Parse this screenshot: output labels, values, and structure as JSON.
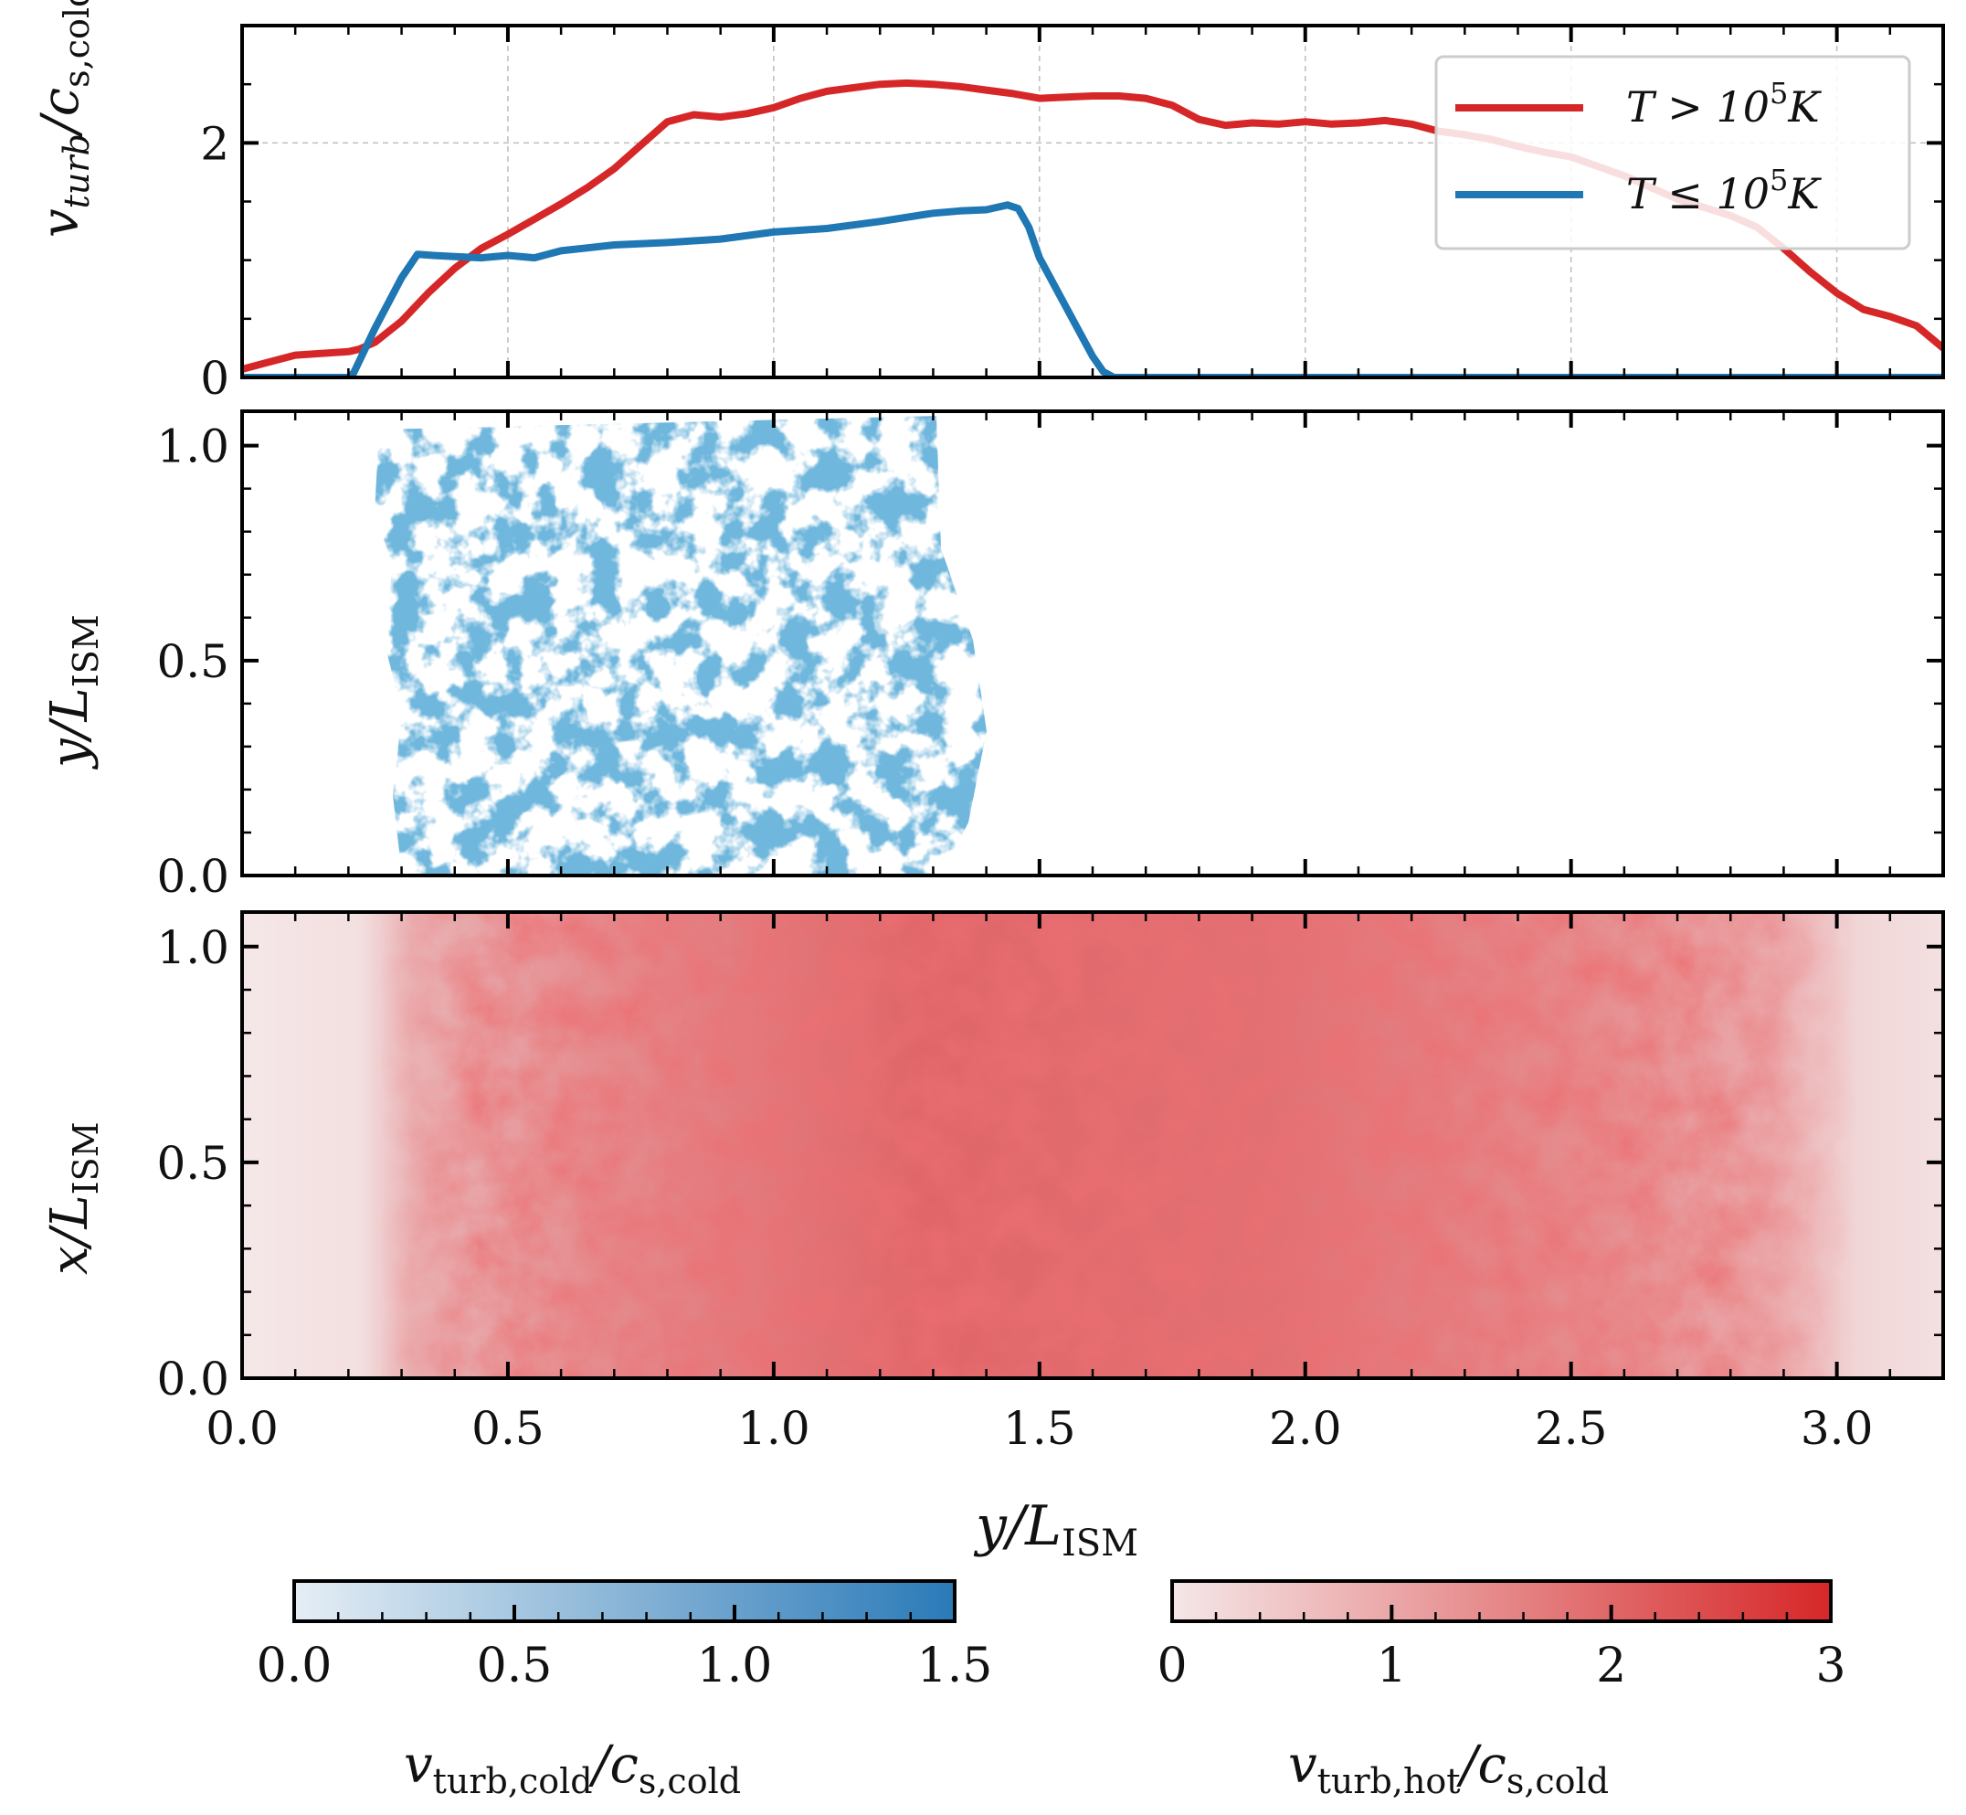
{
  "chart_data": [
    {
      "type": "line",
      "panel": "top",
      "ylabel": "v_turb/c_s,cold",
      "ylim": [
        0,
        3.0
      ],
      "xlim": [
        0,
        3.2
      ],
      "y_ticks": [
        {
          "v": 0,
          "label": "0"
        },
        {
          "v": 2,
          "label": "2"
        }
      ],
      "grid": true,
      "legend_position": "top-right",
      "series": [
        {
          "name": "T > 10^5 K",
          "color": "#d62728",
          "x": [
            0.0,
            0.05,
            0.1,
            0.2,
            0.22,
            0.25,
            0.3,
            0.35,
            0.4,
            0.45,
            0.5,
            0.55,
            0.6,
            0.65,
            0.7,
            0.75,
            0.8,
            0.85,
            0.9,
            0.95,
            1.0,
            1.05,
            1.1,
            1.15,
            1.2,
            1.25,
            1.3,
            1.35,
            1.4,
            1.45,
            1.5,
            1.55,
            1.6,
            1.65,
            1.7,
            1.75,
            1.8,
            1.85,
            1.9,
            1.95,
            2.0,
            2.05,
            2.1,
            2.15,
            2.2,
            2.25,
            2.3,
            2.35,
            2.4,
            2.45,
            2.5,
            2.55,
            2.6,
            2.65,
            2.7,
            2.75,
            2.8,
            2.85,
            2.9,
            2.95,
            3.0,
            3.05,
            3.1,
            3.15,
            3.2
          ],
          "values": [
            0.07,
            0.13,
            0.19,
            0.22,
            0.24,
            0.3,
            0.48,
            0.72,
            0.93,
            1.1,
            1.22,
            1.35,
            1.48,
            1.62,
            1.78,
            1.98,
            2.18,
            2.24,
            2.22,
            2.25,
            2.3,
            2.38,
            2.44,
            2.47,
            2.5,
            2.51,
            2.5,
            2.48,
            2.45,
            2.42,
            2.38,
            2.39,
            2.4,
            2.4,
            2.38,
            2.32,
            2.2,
            2.15,
            2.17,
            2.16,
            2.18,
            2.16,
            2.17,
            2.19,
            2.16,
            2.1,
            2.07,
            2.03,
            1.97,
            1.92,
            1.88,
            1.8,
            1.72,
            1.62,
            1.52,
            1.45,
            1.38,
            1.28,
            1.1,
            0.9,
            0.72,
            0.58,
            0.52,
            0.44,
            0.25
          ]
        },
        {
          "name": "T ≤ 10^5 K",
          "color": "#1f77b4",
          "x": [
            0.0,
            0.2,
            0.21,
            0.25,
            0.3,
            0.33,
            0.36,
            0.4,
            0.45,
            0.5,
            0.55,
            0.6,
            0.7,
            0.8,
            0.9,
            1.0,
            1.1,
            1.2,
            1.3,
            1.35,
            1.4,
            1.44,
            1.46,
            1.48,
            1.5,
            1.55,
            1.6,
            1.62,
            1.64,
            1.7,
            2.0,
            2.5,
            3.0,
            3.2
          ],
          "values": [
            0.0,
            0.0,
            0.04,
            0.42,
            0.85,
            1.05,
            1.04,
            1.03,
            1.02,
            1.04,
            1.02,
            1.08,
            1.13,
            1.15,
            1.18,
            1.24,
            1.27,
            1.33,
            1.4,
            1.42,
            1.43,
            1.47,
            1.44,
            1.28,
            1.02,
            0.6,
            0.18,
            0.05,
            0.0,
            0.0,
            0.0,
            0.0,
            0.0,
            0.0
          ]
        }
      ]
    },
    {
      "type": "heatmap",
      "panel": "middle",
      "ylabel": "y/L_ISM",
      "colormap": "Blues",
      "color_min": "#e6eef5",
      "color_max": "#2a7ab8",
      "xlim": [
        0,
        3.2
      ],
      "ylim": [
        0,
        1.08
      ],
      "y_ticks": [
        {
          "v": 0,
          "label": "0.0"
        },
        {
          "v": 0.5,
          "label": "0.5"
        },
        {
          "v": 1.0,
          "label": "1.0"
        }
      ],
      "extent_x": [
        0.27,
        1.65
      ]
    },
    {
      "type": "heatmap",
      "panel": "bottom",
      "ylabel": "x/L_ISM",
      "xlabel": "y/L_ISM",
      "colormap": "Reds",
      "color_min": "#f5e7e8",
      "color_max": "#d62728",
      "xlim": [
        0,
        3.2
      ],
      "ylim": [
        0,
        1.08
      ],
      "x_ticks": [
        {
          "v": 0,
          "label": "0.0"
        },
        {
          "v": 0.5,
          "label": "0.5"
        },
        {
          "v": 1.0,
          "label": "1.0"
        },
        {
          "v": 1.5,
          "label": "1.5"
        },
        {
          "v": 2.0,
          "label": "2.0"
        },
        {
          "v": 2.5,
          "label": "2.5"
        },
        {
          "v": 3.0,
          "label": "3.0"
        }
      ],
      "y_ticks": [
        {
          "v": 0,
          "label": "0.0"
        },
        {
          "v": 0.5,
          "label": "0.5"
        },
        {
          "v": 1.0,
          "label": "1.0"
        }
      ]
    }
  ],
  "colorbars": [
    {
      "name": "cold",
      "label": "v_turb,cold/c_s,cold",
      "range": [
        0,
        1.5
      ],
      "ticks": [
        {
          "v": 0,
          "label": "0.0"
        },
        {
          "v": 0.5,
          "label": "0.5"
        },
        {
          "v": 1.0,
          "label": "1.0"
        },
        {
          "v": 1.5,
          "label": "1.5"
        }
      ],
      "color_min": "#e6eef5",
      "color_max": "#2a7ab8"
    },
    {
      "name": "hot",
      "label": "v_turb,hot/c_s,cold",
      "range": [
        0,
        3
      ],
      "ticks": [
        {
          "v": 0,
          "label": "0"
        },
        {
          "v": 1,
          "label": "1"
        },
        {
          "v": 2,
          "label": "2"
        },
        {
          "v": 3,
          "label": "3"
        }
      ],
      "color_min": "#f5e7e8",
      "color_max": "#d62728"
    }
  ],
  "labels": {
    "top_ylabel_main": "v",
    "top_ylabel_sub": "turb",
    "top_ylabel_rest": "/c",
    "top_ylabel_sub2": "s,cold",
    "mid_ylabel_main": "y/L",
    "mid_ylabel_sub": "ISM",
    "bot_ylabel_main": "x/L",
    "bot_ylabel_sub": "ISM",
    "xlabel_main": "y/L",
    "xlabel_sub": "ISM",
    "legend_hot_T": "T > 10",
    "legend_hot_exp": "5",
    "legend_hot_unit": "K",
    "legend_cold_T": "T ≤ 10",
    "legend_cold_exp": "5",
    "legend_cold_unit": "K",
    "cbar_cold_v": "v",
    "cbar_cold_sub": "turb,cold",
    "cbar_cold_c": "/c",
    "cbar_cold_sub2": "s,cold",
    "cbar_hot_v": "v",
    "cbar_hot_sub": "turb,hot",
    "cbar_hot_c": "/c",
    "cbar_hot_sub2": "s,cold"
  }
}
